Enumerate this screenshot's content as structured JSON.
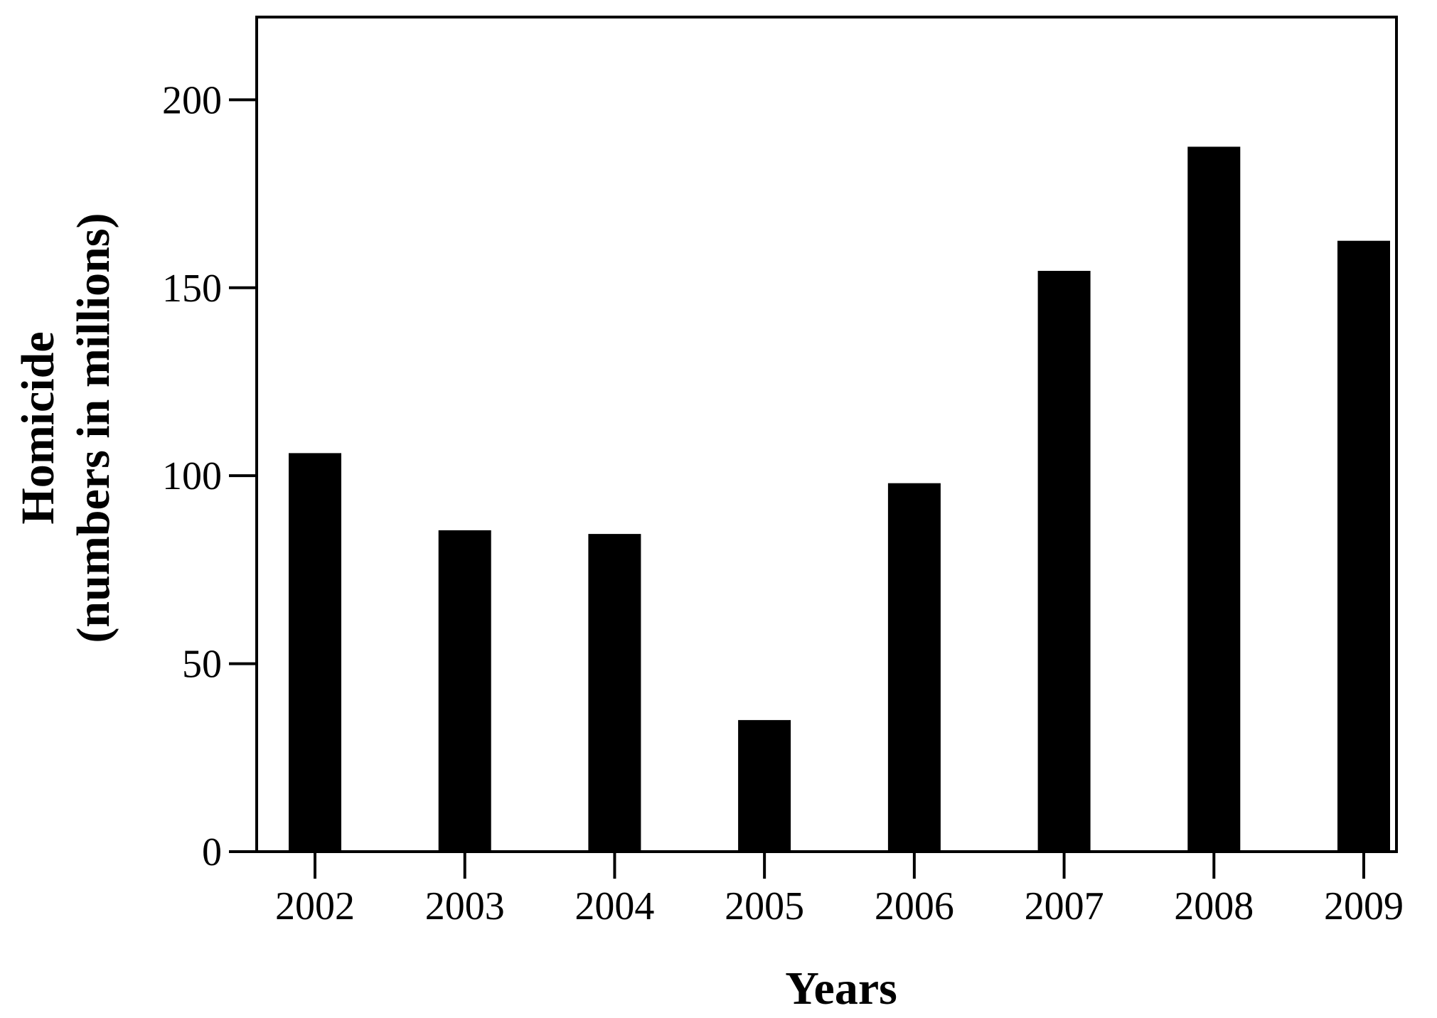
{
  "chart_data": {
    "type": "bar",
    "categories": [
      "2002",
      "2003",
      "2004",
      "2005",
      "2006",
      "2007",
      "2008",
      "2009"
    ],
    "values": [
      106,
      85.5,
      84.5,
      35,
      98,
      154.5,
      187.5,
      162.5
    ],
    "xlabel": "Years",
    "ylabel": "Homicide",
    "ylabel_line2": "(numbers in millions)",
    "yticks": [
      0,
      50,
      100,
      150,
      200
    ],
    "ylim": [
      0,
      222
    ],
    "grid": false,
    "bar_color": "#000000"
  }
}
